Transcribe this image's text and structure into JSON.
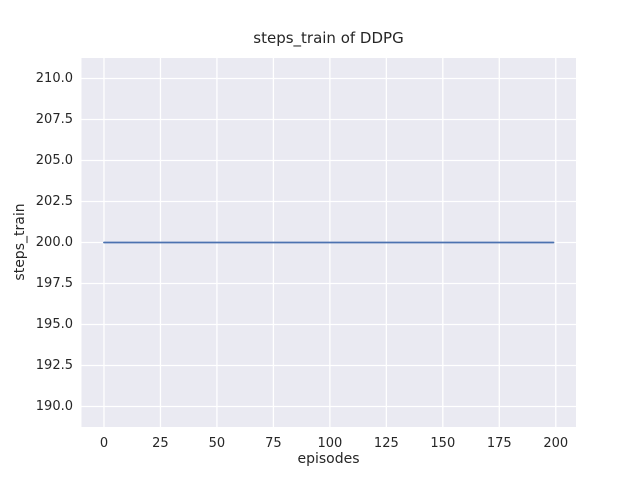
{
  "chart_data": {
    "type": "line",
    "title": "steps_train of DDPG",
    "xlabel": "episodes",
    "ylabel": "steps_train",
    "x_ticks": [
      0,
      25,
      50,
      75,
      100,
      125,
      150,
      175,
      200
    ],
    "x_tick_labels": [
      "0",
      "25",
      "50",
      "75",
      "100",
      "125",
      "150",
      "175",
      "200"
    ],
    "y_ticks": [
      190.0,
      192.5,
      195.0,
      197.5,
      200.0,
      202.5,
      205.0,
      207.5,
      210.0
    ],
    "y_tick_labels": [
      "190.0",
      "192.5",
      "195.0",
      "197.5",
      "200.0",
      "202.5",
      "205.0",
      "207.5",
      "210.0"
    ],
    "xlim": [
      -9.95,
      208.95
    ],
    "ylim": [
      188.75,
      211.25
    ],
    "grid": true,
    "legend": null,
    "series": [
      {
        "name": "steps_train",
        "x": [
          0,
          199
        ],
        "y": [
          200,
          200
        ],
        "constant_value": 200,
        "color": "#4c72b0"
      }
    ],
    "colors": {
      "axes_background": "#eaeaf2",
      "gridline": "#ffffff",
      "text": "#262626",
      "figure_background": "#ffffff"
    }
  }
}
